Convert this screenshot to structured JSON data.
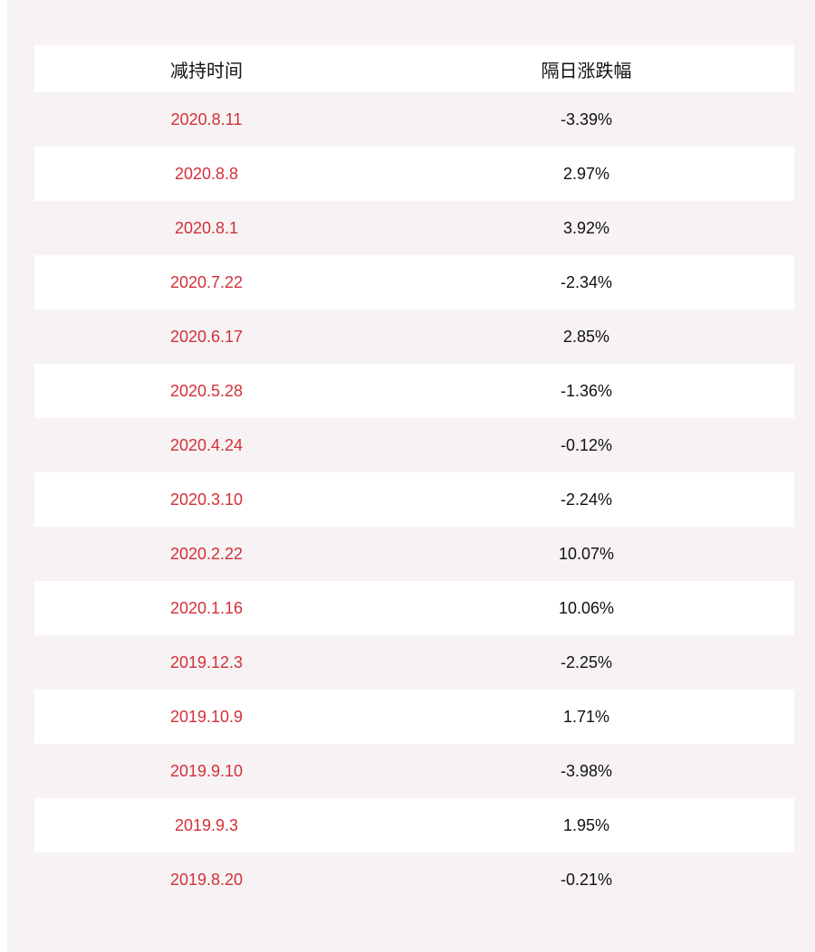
{
  "table": {
    "header": [
      "减持时间",
      "隔日涨跌幅"
    ],
    "rows": [
      [
        "2020.8.11",
        "-3.39%"
      ],
      [
        "2020.8.8",
        "2.97%"
      ],
      [
        "2020.8.1",
        "3.92%"
      ],
      [
        "2020.7.22",
        "-2.34%"
      ],
      [
        "2020.6.17",
        "2.85%"
      ],
      [
        "2020.5.28",
        "-1.36%"
      ],
      [
        "2020.4.24",
        "-0.12%"
      ],
      [
        "2020.3.10",
        "-2.24%"
      ],
      [
        "2020.2.22",
        "10.07%"
      ],
      [
        "2020.1.16",
        "10.06%"
      ],
      [
        "2019.12.3",
        "-2.25%"
      ],
      [
        "2019.10.9",
        "1.71%"
      ],
      [
        "2019.9.10",
        "-3.98%"
      ],
      [
        "2019.9.3",
        "1.95%"
      ],
      [
        "2019.8.20",
        "-0.21%"
      ]
    ]
  }
}
